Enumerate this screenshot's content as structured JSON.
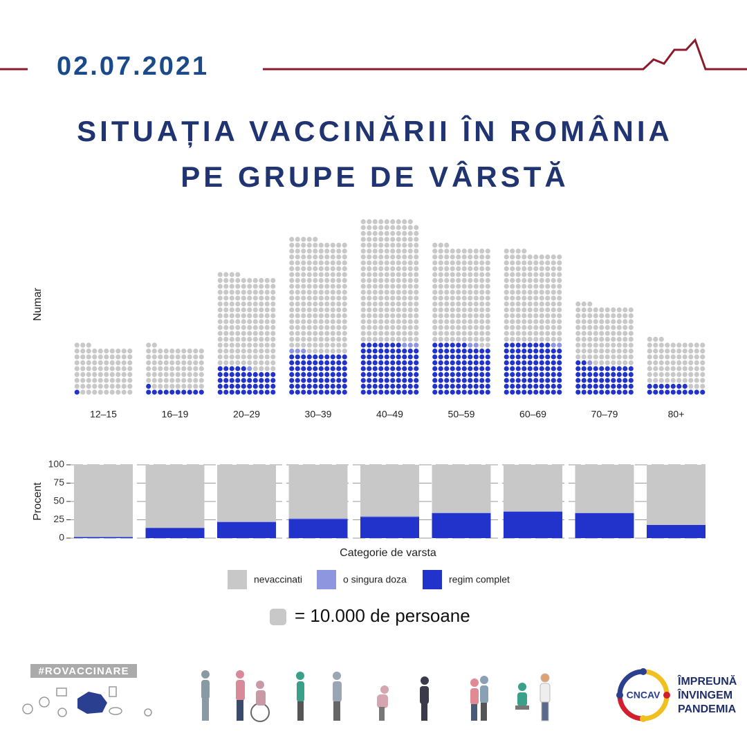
{
  "header": {
    "date": "02.07.2021",
    "title": [
      "SITUAȚIA VACCINĂRII ÎN ROMÂNIA",
      "PE GRUPE DE VÂRSTĂ"
    ]
  },
  "chart_data": [
    {
      "type": "waffle",
      "y_label": "Numar",
      "categories": [
        "12–15",
        "16–19",
        "20–29",
        "30–39",
        "40–49",
        "50–59",
        "60–69",
        "70–79",
        "80+"
      ],
      "series": [
        {
          "name": "nevaccinati",
          "color": "#c8c8c8",
          "values": [
            820000,
            710000,
            1580000,
            1920000,
            2090000,
            1650000,
            1540000,
            1000000,
            760000
          ]
        },
        {
          "name": "o singura doza",
          "color": "#8f96e0",
          "values": [
            0,
            0,
            10000,
            30000,
            30000,
            20000,
            20000,
            10000,
            0
          ]
        },
        {
          "name": "regim complet",
          "color": "#2233cc",
          "values": [
            10000,
            110000,
            450000,
            700000,
            870000,
            860000,
            880000,
            520000,
            170000
          ]
        }
      ],
      "dot_value": 10000,
      "dot_label": "= 10.000 de persoane"
    },
    {
      "type": "bar",
      "stacked": true,
      "y_label": "Procent",
      "x_label": "Categorie de varsta",
      "series": [
        {
          "color": "#c8c8c8",
          "values": [
            98.5,
            86,
            77.5,
            73,
            70,
            65.2,
            63.2,
            65.3,
            82
          ]
        },
        {
          "color": "#8f96e0",
          "values": [
            0,
            0,
            0.5,
            1,
            1,
            0.8,
            0.8,
            0.7,
            0
          ]
        },
        {
          "color": "#2233cc",
          "values": [
            1.5,
            14,
            22,
            26,
            29,
            34,
            36,
            34,
            18
          ]
        }
      ],
      "ylim": [
        0,
        100
      ],
      "yticks": [
        0,
        25,
        50,
        75,
        100
      ],
      "grid": true
    }
  ],
  "footer": {
    "hashtag": "#ROVACCINARE",
    "logo": "CNCAV",
    "slogan": [
      "ÎMPREUNĂ",
      "ÎNVINGEM",
      "PANDEMIA"
    ]
  }
}
